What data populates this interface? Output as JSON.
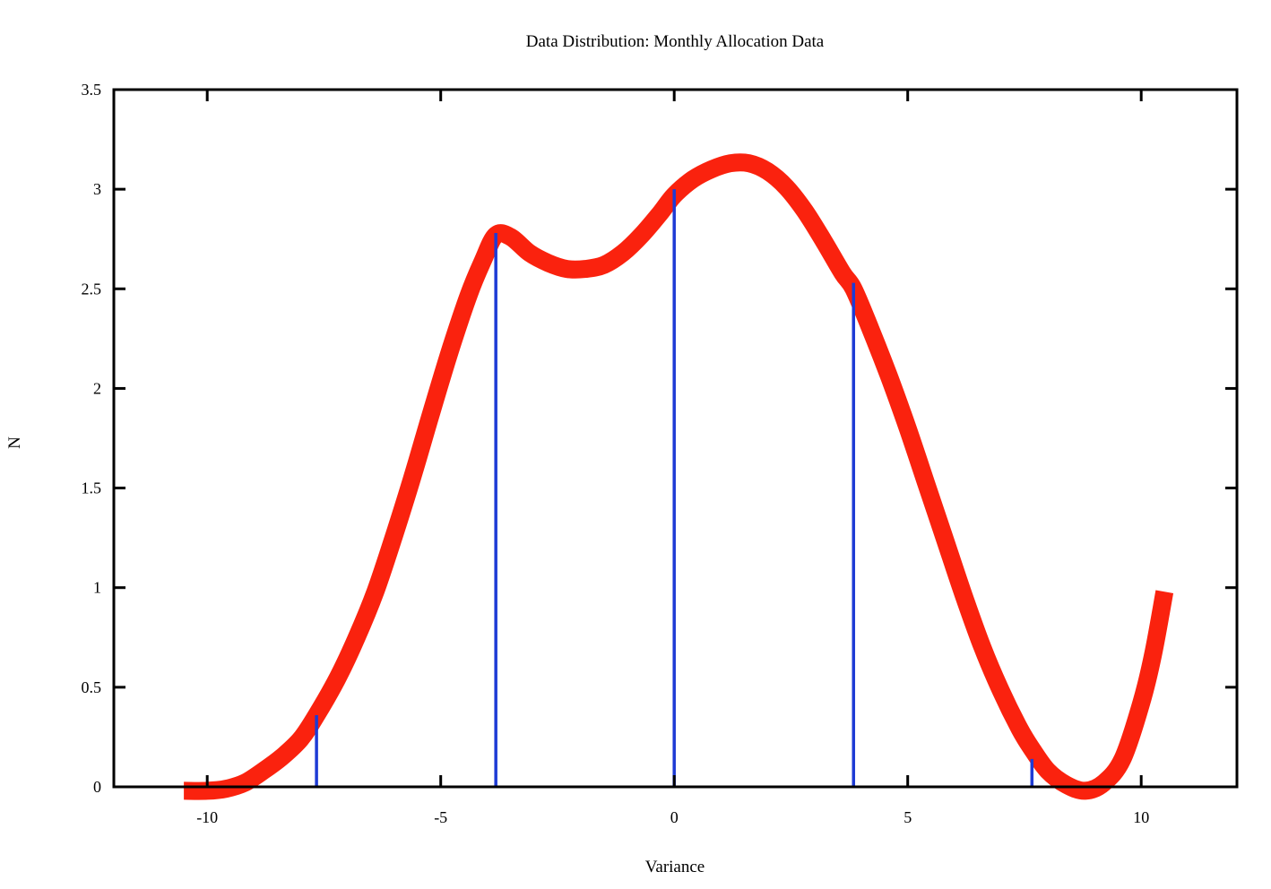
{
  "chart_data": {
    "type": "line",
    "title": "Data Distribution: Monthly Allocation Data",
    "xlabel": "Variance",
    "ylabel": "N",
    "xlim": [
      -12,
      12.05
    ],
    "ylim": [
      0,
      3.5
    ],
    "grid": false,
    "legend": false,
    "x_ticks": [
      {
        "value": -10,
        "label": "-10"
      },
      {
        "value": -5,
        "label": "-5"
      },
      {
        "value": 0,
        "label": "0"
      },
      {
        "value": 5,
        "label": "5"
      },
      {
        "value": 10,
        "label": "10"
      }
    ],
    "y_ticks": [
      {
        "value": 0,
        "label": "0"
      },
      {
        "value": 0.5,
        "label": "0.5"
      },
      {
        "value": 1,
        "label": "1"
      },
      {
        "value": 1.5,
        "label": "1.5"
      },
      {
        "value": 2,
        "label": "2"
      },
      {
        "value": 2.5,
        "label": "2.5"
      },
      {
        "value": 3,
        "label": "3"
      },
      {
        "value": 3.5,
        "label": "3.5"
      }
    ],
    "series": [
      {
        "name": "smoothed-distribution-curve",
        "style": "smooth-line",
        "color": "#fa220e",
        "stroke_width": 20,
        "points": [
          [
            -10.5,
            -0.02
          ],
          [
            -10.0,
            -0.02
          ],
          [
            -9.6,
            -0.01
          ],
          [
            -9.2,
            0.02
          ],
          [
            -8.8,
            0.08
          ],
          [
            -8.4,
            0.15
          ],
          [
            -8.0,
            0.24
          ],
          [
            -7.66,
            0.36
          ],
          [
            -7.2,
            0.55
          ],
          [
            -6.8,
            0.75
          ],
          [
            -6.4,
            0.98
          ],
          [
            -6.0,
            1.26
          ],
          [
            -5.6,
            1.56
          ],
          [
            -5.2,
            1.88
          ],
          [
            -4.8,
            2.19
          ],
          [
            -4.4,
            2.47
          ],
          [
            -4.1,
            2.64
          ],
          [
            -3.82,
            2.77
          ],
          [
            -3.5,
            2.76
          ],
          [
            -3.1,
            2.68
          ],
          [
            -2.7,
            2.63
          ],
          [
            -2.3,
            2.6
          ],
          [
            -1.9,
            2.6
          ],
          [
            -1.5,
            2.62
          ],
          [
            -1.1,
            2.68
          ],
          [
            -0.7,
            2.77
          ],
          [
            -0.3,
            2.88
          ],
          [
            0.0,
            2.97
          ],
          [
            0.4,
            3.05
          ],
          [
            0.8,
            3.1
          ],
          [
            1.2,
            3.13
          ],
          [
            1.6,
            3.13
          ],
          [
            2.0,
            3.09
          ],
          [
            2.4,
            3.01
          ],
          [
            2.8,
            2.89
          ],
          [
            3.2,
            2.74
          ],
          [
            3.6,
            2.58
          ],
          [
            3.84,
            2.5
          ],
          [
            4.2,
            2.3
          ],
          [
            4.6,
            2.06
          ],
          [
            5.0,
            1.8
          ],
          [
            5.4,
            1.52
          ],
          [
            5.8,
            1.24
          ],
          [
            6.2,
            0.96
          ],
          [
            6.6,
            0.7
          ],
          [
            7.0,
            0.48
          ],
          [
            7.4,
            0.29
          ],
          [
            7.66,
            0.19
          ],
          [
            8.0,
            0.08
          ],
          [
            8.4,
            0.01
          ],
          [
            8.8,
            -0.02
          ],
          [
            9.2,
            0.02
          ],
          [
            9.6,
            0.14
          ],
          [
            10.0,
            0.42
          ],
          [
            10.25,
            0.66
          ],
          [
            10.5,
            0.98
          ]
        ]
      },
      {
        "name": "data-impulses",
        "style": "impulses",
        "color": "#1e3bd5",
        "stroke_width": 3.5,
        "points": [
          [
            -7.66,
            0.36
          ],
          [
            -3.82,
            2.78
          ],
          [
            0.0,
            3.0
          ],
          [
            3.84,
            2.53
          ],
          [
            7.66,
            0.14
          ]
        ]
      }
    ]
  },
  "colors": {
    "background": "#ffffff",
    "frame": "#000000",
    "curve": "#fa220e",
    "impulse": "#1e3bd5",
    "text": "#000000"
  }
}
